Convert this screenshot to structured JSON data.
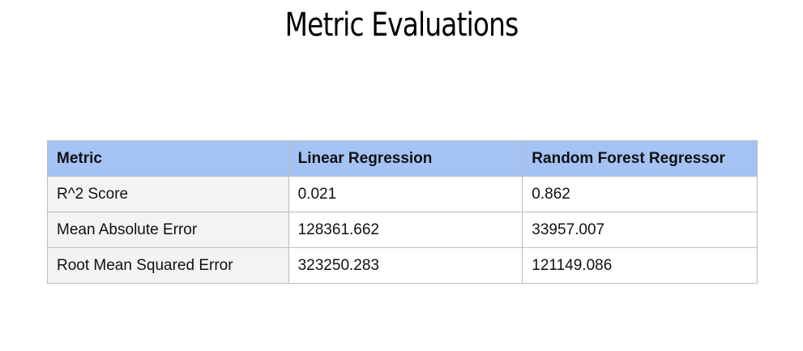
{
  "title": "Metric Evaluations",
  "table": {
    "headers": [
      "Metric",
      "Linear Regression",
      "Random Forest Regressor"
    ],
    "rows": [
      [
        "R^2 Score",
        "0.021",
        "0.862"
      ],
      [
        "Mean Absolute Error",
        "128361.662",
        "33957.007"
      ],
      [
        "Root Mean Squared Error",
        "323250.283",
        "121149.086"
      ]
    ]
  },
  "colors": {
    "header_background": "#a4c2f4",
    "first_column_background": "#f3f3f3",
    "border": "#bdbdbd"
  }
}
